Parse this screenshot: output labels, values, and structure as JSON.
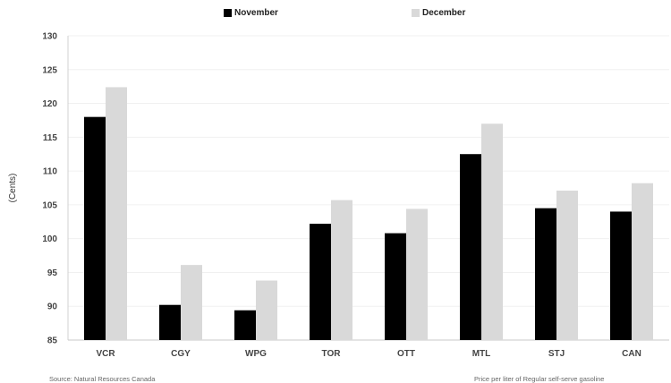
{
  "chart_data": {
    "type": "bar",
    "categories": [
      "VCR",
      "CGY",
      "WPG",
      "TOR",
      "OTT",
      "MTL",
      "STJ",
      "CAN"
    ],
    "series": [
      {
        "name": "November",
        "color": "#000000",
        "values": [
          118.0,
          90.2,
          89.4,
          102.2,
          100.8,
          112.5,
          104.5,
          104.0
        ]
      },
      {
        "name": "December",
        "color": "#d9d9d9",
        "values": [
          122.4,
          96.1,
          93.8,
          105.7,
          104.4,
          117.0,
          107.1,
          108.2
        ]
      }
    ],
    "ylabel": "(Cents)",
    "ylim": [
      85,
      130
    ],
    "yticks": [
      85,
      90,
      95,
      100,
      105,
      110,
      115,
      120,
      125,
      130
    ],
    "grid": true,
    "legend_position": "top"
  },
  "footer": {
    "source": "Source: Natural Resources Canada",
    "note": "Price per liter of Regular self-serve gasoline"
  }
}
